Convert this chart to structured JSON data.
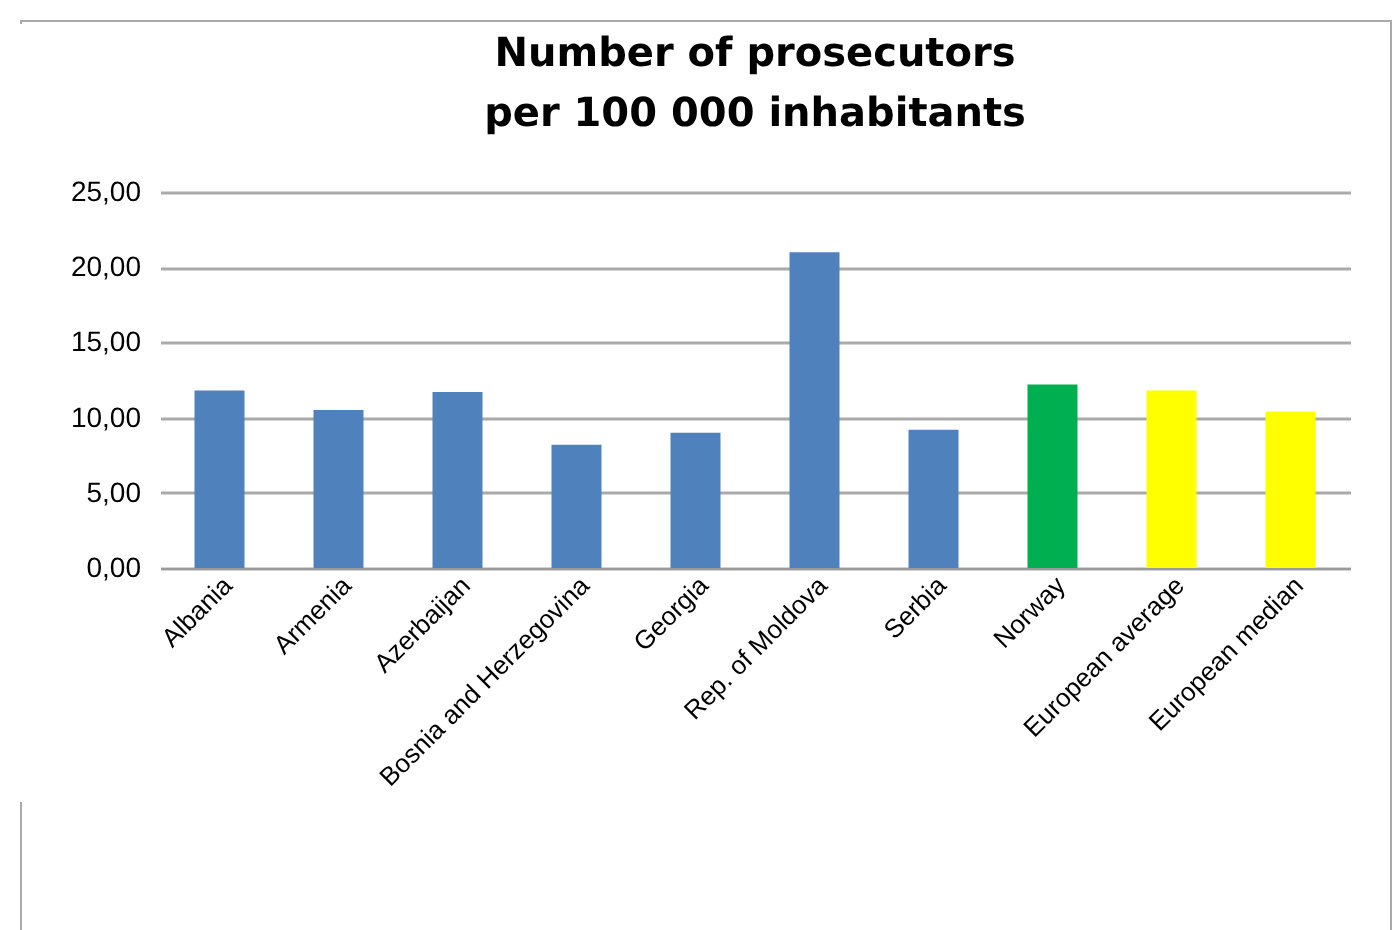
{
  "chart_data": {
    "type": "bar",
    "title": [
      "Number of prosecutors",
      "per 100 000 inhabitants"
    ],
    "categories": [
      "Albania",
      "Armenia",
      "Azerbaijan",
      "Bosnia and Herzegovina",
      "Georgia",
      "Rep. of Moldova",
      "Serbia",
      "Norway",
      "European average",
      "European median"
    ],
    "values": [
      11.8,
      10.5,
      11.7,
      8.2,
      9.0,
      21.0,
      9.2,
      12.2,
      11.8,
      10.4
    ],
    "colors": [
      "#4f81bd",
      "#4f81bd",
      "#4f81bd",
      "#4f81bd",
      "#4f81bd",
      "#4f81bd",
      "#4f81bd",
      "#00b050",
      "#ffff00",
      "#ffff00"
    ],
    "ylim": [
      0,
      25
    ],
    "yticks": [
      {
        "value": 0,
        "label": "0,00"
      },
      {
        "value": 5,
        "label": "5,00"
      },
      {
        "value": 10,
        "label": "10,00"
      },
      {
        "value": 15,
        "label": "15,00"
      },
      {
        "value": 20,
        "label": "20,00"
      },
      {
        "value": 25,
        "label": "25,00"
      }
    ],
    "grid": "y"
  }
}
